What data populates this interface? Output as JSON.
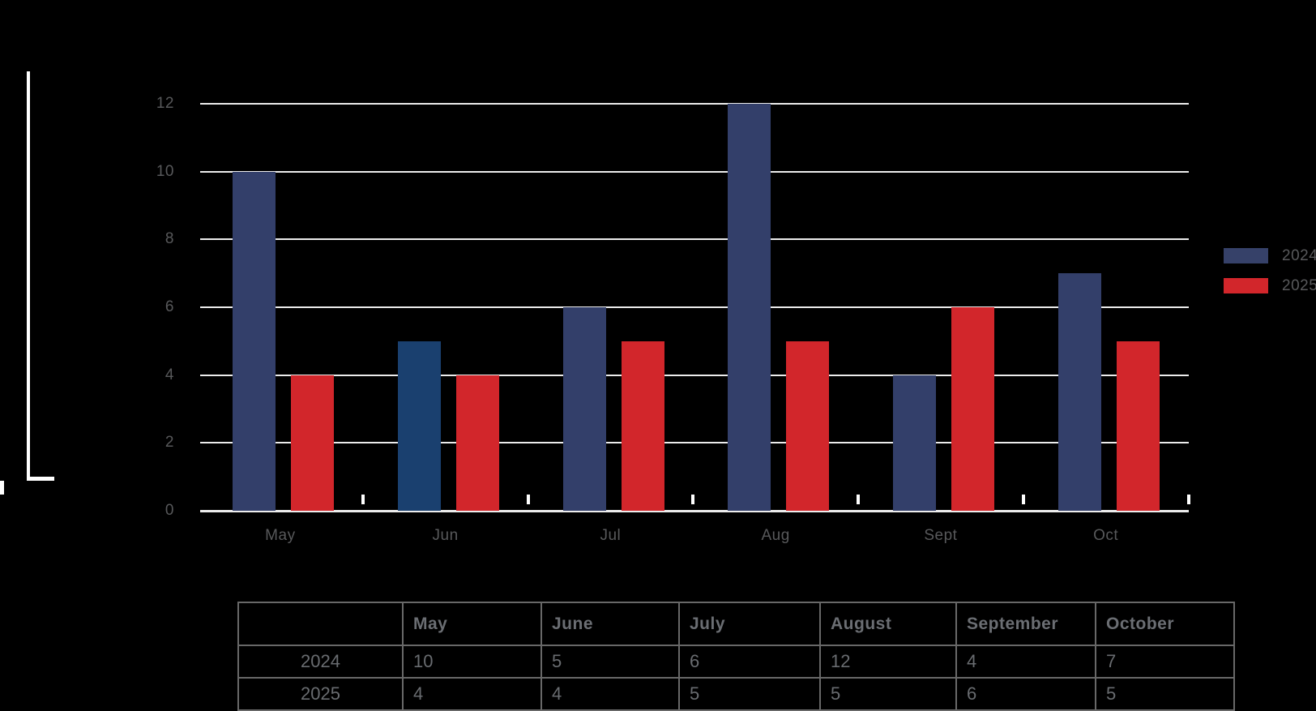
{
  "chart_data": {
    "type": "bar",
    "title": "",
    "xlabel": "",
    "ylabel": "",
    "categories": [
      "May",
      "Jun",
      "Jul",
      "Aug",
      "Sept",
      "Oct"
    ],
    "series": [
      {
        "name": "2024",
        "values": [
          10,
          5,
          6,
          12,
          4,
          7
        ],
        "color": "#333F6A",
        "bar_colors": [
          "#333F6A",
          "#1A406F",
          "#333F6A",
          "#333F6A",
          "#333F6A",
          "#333F6A"
        ]
      },
      {
        "name": "2025",
        "values": [
          4,
          4,
          5,
          5,
          6,
          5
        ],
        "color": "#D2262B",
        "bar_colors": [
          "#D2262B",
          "#D2262B",
          "#D2262B",
          "#D2262B",
          "#D2262B",
          "#D2262B"
        ]
      }
    ],
    "ylim": [
      0,
      12
    ],
    "yticks": [
      0,
      2,
      4,
      6,
      8,
      10,
      12
    ],
    "grid": "horizontal",
    "gridline_color": "#ECECEC",
    "tick_mark_color": "#FFFFFF",
    "axis_text_color": "#58595B",
    "background_color": "#000000",
    "legend": {
      "position": "right",
      "entries": [
        {
          "label": "2024",
          "color": "#364169"
        },
        {
          "label": "2025",
          "color": "#D2262B"
        }
      ]
    }
  },
  "table": {
    "headers": [
      "",
      "May",
      "June",
      "July",
      "August",
      "September",
      "October"
    ],
    "rows": [
      {
        "label": "2024",
        "values": [
          "10",
          "5",
          "6",
          "12",
          "4",
          "7"
        ]
      },
      {
        "label": "2025",
        "values": [
          "4",
          "4",
          "5",
          "5",
          "6",
          "5"
        ]
      }
    ]
  }
}
